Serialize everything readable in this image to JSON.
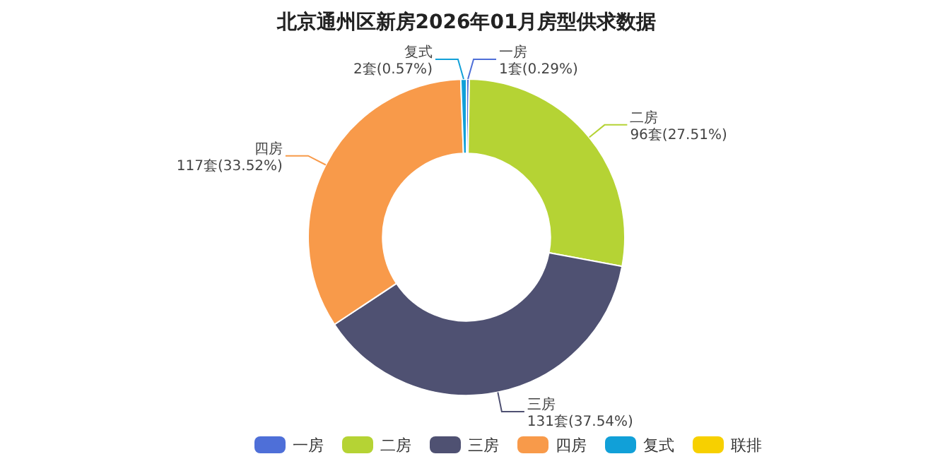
{
  "chart_data": {
    "type": "donut",
    "title": "北京通州区新房2026年01月房型供求数据",
    "categories": [
      "一房",
      "二房",
      "三房",
      "四房",
      "复式",
      "联排"
    ],
    "values": [
      1,
      96,
      131,
      117,
      2,
      0
    ],
    "value_labels": [
      "1套(0.29%)",
      "96套(27.51%)",
      "131套(37.54%)",
      "117套(33.52%)",
      "2套(0.57%)",
      null
    ],
    "colors": [
      "#4e6fd8",
      "#b5d334",
      "#4f5172",
      "#f89a4a",
      "#11a0d8",
      "#f7d000"
    ],
    "legend": "bottom"
  }
}
